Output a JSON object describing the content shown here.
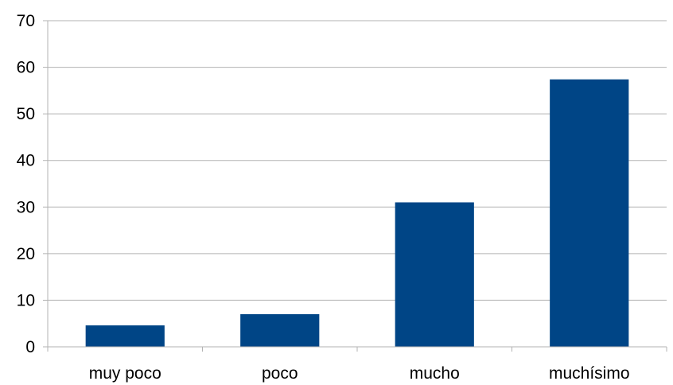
{
  "chart_data": {
    "type": "bar",
    "categories": [
      "muy poco",
      "poco",
      "mucho",
      "muchísimo"
    ],
    "values": [
      4.6,
      7.0,
      31.0,
      57.4
    ],
    "title": "",
    "xlabel": "",
    "ylabel": "",
    "ylim": [
      0,
      70
    ],
    "yticks": [
      0,
      10,
      20,
      30,
      40,
      50,
      60,
      70
    ],
    "grid": "horizontal",
    "legend": "none",
    "colors": {
      "bar": "#004586",
      "grid": "#b3b3b3",
      "axis": "#b3b3b3"
    }
  }
}
